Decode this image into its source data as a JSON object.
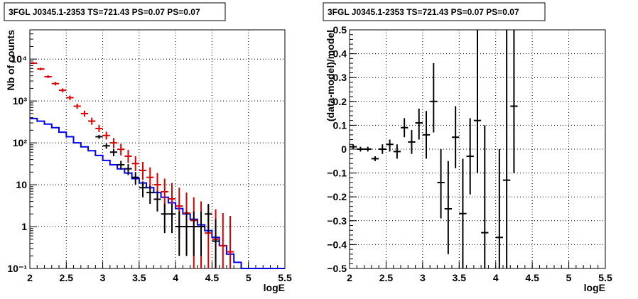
{
  "chart_data": [
    {
      "type": "scatter",
      "title": "3FGL J0345.1-2353 TS=721.43 PS=0.07 PS=0.07",
      "xlabel": "logE",
      "ylabel": "Nb of counts",
      "xlim": [
        2,
        5.5
      ],
      "ylim": [
        0.1,
        50000
      ],
      "yscale": "log",
      "grid": true,
      "xticks": [
        "2",
        "2.5",
        "3",
        "3.5",
        "4",
        "4.5",
        "5",
        "5.5"
      ],
      "yticks": [
        "10⁻¹",
        "1",
        "10",
        "10²",
        "10³",
        "10⁴"
      ],
      "colors": {
        "data": "#000000",
        "model_points": "#dd0000",
        "model_line": "#0000ee"
      },
      "series": [
        {
          "kind": "step",
          "edges": [
            2.0,
            2.1,
            2.2,
            2.3,
            2.4,
            2.5,
            2.6,
            2.7,
            2.8,
            2.9,
            3.0,
            3.1,
            3.2,
            3.3,
            3.4,
            3.5,
            3.6,
            3.7,
            3.8,
            3.9,
            4.0,
            4.1,
            4.2,
            4.3,
            4.4,
            4.5,
            4.6,
            4.7,
            4.8,
            4.9,
            5.0,
            5.1,
            5.2,
            5.3,
            5.4,
            5.5
          ],
          "values": [
            380,
            330,
            280,
            230,
            180,
            140,
            100,
            80,
            65,
            50,
            38,
            30,
            24,
            19,
            14,
            11,
            8.5,
            6.5,
            5,
            3.7,
            2.7,
            2,
            1.5,
            1.1,
            0.8,
            0.55,
            0.35,
            0.22,
            0.14,
            0.1,
            0.1,
            0.1,
            0.1,
            0.1,
            0.1
          ]
        },
        {
          "kind": "errorbar",
          "x": [
            2.05,
            2.15,
            2.25,
            2.35,
            2.45,
            2.55,
            2.65,
            2.75,
            2.85,
            2.95,
            3.05,
            3.15,
            3.25,
            3.35,
            3.45,
            3.55,
            3.65,
            3.75,
            3.85,
            3.95,
            4.05,
            4.15,
            4.25,
            4.35,
            4.45,
            4.55,
            4.65,
            4.75
          ],
          "y": [
            8000,
            5800,
            3800,
            2600,
            1800,
            1200,
            750,
            500,
            330,
            220,
            150,
            100,
            70,
            48,
            32,
            22,
            15,
            10,
            6.8,
            4.6,
            3.1,
            2.1,
            1.4,
            1.0,
            0.7,
            0.5,
            0.35,
            0.25
          ],
          "ylow": [
            7600,
            5400,
            3500,
            2350,
            1600,
            1050,
            650,
            420,
            270,
            180,
            120,
            75,
            50,
            33,
            21,
            13,
            8,
            4.5,
            2.5,
            1.2,
            0.5,
            0.2,
            0.1,
            0.1,
            0.1,
            0.1,
            0.1,
            0.1
          ],
          "yhigh": [
            8400,
            6200,
            4100,
            2850,
            2000,
            1350,
            860,
            590,
            400,
            270,
            185,
            130,
            95,
            68,
            48,
            35,
            26,
            19,
            14,
            11,
            8.5,
            6.5,
            5,
            4,
            3.2,
            2.6,
            2.1,
            1.8
          ]
        },
        {
          "kind": "errorbar",
          "x": [
            2.95,
            3.05,
            3.15,
            3.25,
            3.35,
            3.45,
            3.55,
            3.65,
            3.75,
            3.85,
            3.95,
            4.05,
            4.15,
            4.25,
            4.35,
            4.45,
            4.55
          ],
          "y": [
            140,
            85,
            60,
            30,
            24,
            15,
            8.5,
            6.5,
            4.5,
            2.0,
            2.0,
            1.0,
            1.0,
            1.0,
            1.0,
            2.0,
            0.45
          ],
          "ylow": [
            125,
            72,
            48,
            23,
            17,
            10,
            5,
            3.5,
            2.3,
            0.7,
            0.7,
            0.2,
            0.2,
            0.2,
            0.2,
            0.7,
            0.1
          ],
          "yhigh": [
            155,
            98,
            72,
            37,
            31,
            20,
            12,
            9.5,
            7,
            3.5,
            3.5,
            2.3,
            2.3,
            2.3,
            2.3,
            3.5,
            1.5
          ]
        }
      ]
    },
    {
      "type": "scatter",
      "title": "3FGL J0345.1-2353 TS=721.43 PS=0.07 PS=0.07",
      "xlabel": "logE",
      "ylabel": "(data-model)/model",
      "xlim": [
        2,
        5.5
      ],
      "ylim": [
        -0.5,
        0.5
      ],
      "grid": true,
      "xticks": [
        "2",
        "2.5",
        "3",
        "3.5",
        "4",
        "4.5",
        "5",
        "5.5"
      ],
      "yticks": [
        "−0.5",
        "−0.4",
        "−0.3",
        "−0.2",
        "−0.1",
        "0",
        "0.1",
        "0.2",
        "0.3",
        "0.4",
        "0.5"
      ],
      "series": [
        {
          "kind": "errorbar",
          "x": [
            2.05,
            2.15,
            2.25,
            2.35,
            2.45,
            2.55,
            2.65,
            2.75,
            2.85,
            2.95,
            3.05,
            3.15,
            3.25,
            3.35,
            3.45,
            3.55,
            3.65,
            3.75,
            3.85,
            4.05,
            4.15,
            4.25
          ],
          "y": [
            0.01,
            0.0,
            0.0,
            -0.04,
            0.0,
            0.02,
            -0.01,
            0.09,
            0.03,
            0.11,
            0.06,
            0.2,
            -0.14,
            -0.25,
            0.05,
            -0.27,
            -0.03,
            0.12,
            -0.35,
            -0.37,
            -0.13,
            0.18
          ],
          "ylow": [
            0.0,
            -0.01,
            -0.01,
            -0.05,
            -0.02,
            -0.01,
            -0.04,
            0.05,
            -0.02,
            0.04,
            -0.04,
            0.07,
            -0.29,
            -0.44,
            -0.08,
            -0.51,
            -0.19,
            -0.1,
            -0.5,
            -0.5,
            -0.5,
            -0.1
          ],
          "yhigh": [
            0.02,
            0.01,
            0.01,
            -0.03,
            0.02,
            0.04,
            0.02,
            0.13,
            0.08,
            0.17,
            0.16,
            0.36,
            0.0,
            -0.05,
            0.18,
            -0.04,
            0.13,
            0.5,
            0.1,
            0.0,
            0.5,
            0.5
          ]
        }
      ]
    }
  ]
}
